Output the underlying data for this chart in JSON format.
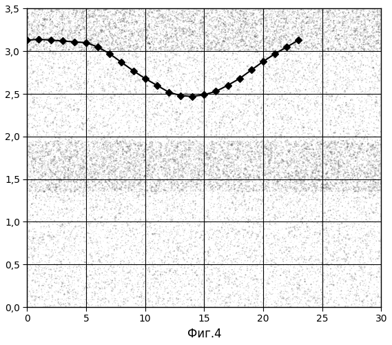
{
  "x": [
    0,
    1,
    2,
    3,
    4,
    5,
    6,
    7,
    8,
    9,
    10,
    11,
    12,
    13,
    14,
    15,
    16,
    17,
    18,
    19,
    20,
    21,
    22,
    23
  ],
  "y": [
    3.13,
    3.14,
    3.13,
    3.12,
    3.11,
    3.1,
    3.05,
    2.97,
    2.87,
    2.77,
    2.68,
    2.6,
    2.52,
    2.48,
    2.47,
    2.49,
    2.53,
    2.6,
    2.68,
    2.78,
    2.88,
    2.97,
    3.05,
    3.13
  ],
  "xlim": [
    0,
    30
  ],
  "ylim": [
    0.0,
    3.5
  ],
  "xticks": [
    0,
    5,
    10,
    15,
    20,
    25,
    30
  ],
  "yticks": [
    0.0,
    0.5,
    1.0,
    1.5,
    2.0,
    2.5,
    3.0,
    3.5
  ],
  "xlabel": "Фиг.4",
  "line_color": "#000000",
  "marker": "D",
  "marker_size": 5,
  "marker_color": "#000000",
  "linewidth": 1.5,
  "grid_color": "#000000",
  "background_color": "#ffffff",
  "figure_bg": "#ffffff",
  "noise_density": 30000,
  "noise_alpha": 0.85
}
